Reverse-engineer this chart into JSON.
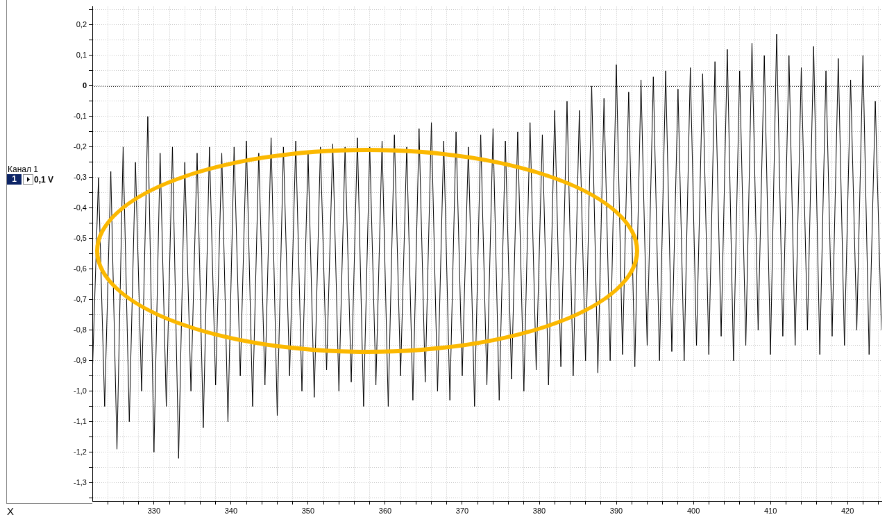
{
  "chart_data": {
    "type": "line",
    "annotations": [
      "Канал 1",
      "1",
      "0,1 V",
      "X"
    ],
    "xlim": [
      322,
      424.4
    ],
    "ylim": [
      -1.36,
      0.26
    ],
    "xticks": [
      {
        "value": 324,
        "label": null
      },
      {
        "value": 326,
        "label": null
      },
      {
        "value": 328,
        "label": null
      },
      330,
      {
        "value": 332,
        "label": null
      },
      {
        "value": 334,
        "label": null
      },
      {
        "value": 336,
        "label": null
      },
      {
        "value": 338,
        "label": null
      },
      340,
      {
        "value": 342,
        "label": null
      },
      {
        "value": 344,
        "label": null
      },
      {
        "value": 346,
        "label": null
      },
      {
        "value": 348,
        "label": null
      },
      350,
      {
        "value": 352,
        "label": null
      },
      {
        "value": 354,
        "label": null
      },
      {
        "value": 356,
        "label": null
      },
      {
        "value": 358,
        "label": null
      },
      360,
      {
        "value": 362,
        "label": null
      },
      {
        "value": 364,
        "label": null
      },
      {
        "value": 366,
        "label": null
      },
      {
        "value": 368,
        "label": null
      },
      370,
      {
        "value": 372,
        "label": null
      },
      {
        "value": 374,
        "label": null
      },
      {
        "value": 376,
        "label": null
      },
      {
        "value": 378,
        "label": null
      },
      380,
      {
        "value": 382,
        "label": null
      },
      {
        "value": 384,
        "label": null
      },
      {
        "value": 386,
        "label": null
      },
      {
        "value": 388,
        "label": null
      },
      390,
      {
        "value": 392,
        "label": null
      },
      {
        "value": 394,
        "label": null
      },
      {
        "value": 396,
        "label": null
      },
      {
        "value": 398,
        "label": null
      },
      400,
      {
        "value": 402,
        "label": null
      },
      {
        "value": 404,
        "label": null
      },
      {
        "value": 406,
        "label": null
      },
      {
        "value": 408,
        "label": null
      },
      410,
      {
        "value": 412,
        "label": null
      },
      {
        "value": 414,
        "label": null
      },
      {
        "value": 416,
        "label": null
      },
      {
        "value": 418,
        "label": null
      },
      420,
      {
        "value": 422,
        "label": null
      },
      {
        "value": 424,
        "label": null
      }
    ],
    "yticks": [
      {
        "value": 0.25,
        "label": null
      },
      {
        "value": 0.2,
        "label": "0,2"
      },
      {
        "value": 0.15,
        "label": null
      },
      {
        "value": 0.1,
        "label": "0,1"
      },
      {
        "value": 0.05,
        "label": null
      },
      0,
      {
        "value": -0.05,
        "label": null
      },
      {
        "value": -0.1,
        "label": "-0,1"
      },
      {
        "value": -0.15,
        "label": null
      },
      {
        "value": -0.2,
        "label": "-0,2"
      },
      {
        "value": -0.25,
        "label": null
      },
      {
        "value": -0.3,
        "label": "-0,3"
      },
      {
        "value": -0.35,
        "label": null
      },
      {
        "value": -0.4,
        "label": "-0,4"
      },
      {
        "value": -0.45,
        "label": null
      },
      {
        "value": -0.5,
        "label": "-0,5"
      },
      {
        "value": -0.55,
        "label": null
      },
      {
        "value": -0.6,
        "label": "-0,6"
      },
      {
        "value": -0.65,
        "label": null
      },
      {
        "value": -0.7,
        "label": "-0,7"
      },
      {
        "value": -0.75,
        "label": null
      },
      {
        "value": -0.8,
        "label": "-0,8"
      },
      {
        "value": -0.85,
        "label": null
      },
      {
        "value": -0.9,
        "label": "-0,9"
      },
      {
        "value": -0.95,
        "label": null
      },
      {
        "value": -1.0,
        "label": "-1,0"
      },
      {
        "value": -1.05,
        "label": null
      },
      {
        "value": -1.1,
        "label": "-1,1"
      },
      {
        "value": -1.15,
        "label": null
      },
      {
        "value": -1.2,
        "label": "-1,2"
      },
      {
        "value": -1.25,
        "label": null
      },
      {
        "value": -1.3,
        "label": "-1,3"
      },
      {
        "value": -1.35,
        "label": null
      }
    ],
    "grid": true,
    "marker": "none",
    "line_style": "solid",
    "ref_lines": [
      {
        "axis": "y",
        "value": 0,
        "color": "#000000",
        "line_style": "dotted"
      }
    ],
    "x": [
      322,
      322.8,
      323.6,
      324.4,
      325.2,
      326,
      326.8,
      327.6,
      328.4,
      329.2,
      330,
      330.8,
      331.6,
      332.4,
      333.2,
      334,
      334.8,
      335.6,
      336.4,
      337.2,
      338,
      338.8,
      339.6,
      340.4,
      341.2,
      342,
      342.8,
      343.6,
      344.4,
      345.2,
      346,
      346.8,
      347.6,
      348.4,
      349.2,
      350,
      350.8,
      351.6,
      352.4,
      353.2,
      354,
      354.8,
      355.6,
      356.4,
      357.2,
      358,
      358.8,
      359.6,
      360.4,
      361.2,
      362,
      362.8,
      363.6,
      364.4,
      365.2,
      366,
      366.8,
      367.6,
      368.4,
      369.2,
      370,
      370.8,
      371.6,
      372.4,
      373.2,
      374,
      374.8,
      375.6,
      376.4,
      377.2,
      378,
      378.8,
      379.6,
      380.4,
      381.2,
      382,
      382.8,
      383.6,
      384.4,
      385.2,
      386,
      386.8,
      387.6,
      388.4,
      389.2,
      390,
      390.8,
      391.6,
      392.4,
      393.2,
      394,
      394.8,
      395.6,
      396.4,
      397.2,
      398,
      398.8,
      399.6,
      400.4,
      401.2,
      402,
      402.8,
      403.6,
      404.4,
      405.2,
      406,
      406.8,
      407.6,
      408.4,
      409.2,
      410,
      410.8,
      411.6,
      412.4,
      413.2,
      414,
      414.8,
      415.6,
      416.4,
      417.2,
      418,
      418.8,
      419.6,
      420.4,
      421.2,
      422,
      422.8,
      423.6,
      424.4
    ],
    "series": [
      {
        "color": "#000000",
        "values": [
          -0.95,
          -0.3,
          -1.05,
          -0.28,
          -1.19,
          -0.2,
          -1.1,
          -0.25,
          -1.0,
          -0.1,
          -1.2,
          -0.22,
          -1.05,
          -0.2,
          -1.22,
          -0.25,
          -1.0,
          -0.22,
          -1.12,
          -0.2,
          -0.98,
          -0.22,
          -1.1,
          -0.2,
          -0.95,
          -0.18,
          -1.05,
          -0.22,
          -0.98,
          -0.17,
          -1.08,
          -0.2,
          -0.95,
          -0.18,
          -1.0,
          -0.22,
          -1.02,
          -0.2,
          -0.93,
          -0.19,
          -1.0,
          -0.2,
          -0.97,
          -0.17,
          -1.05,
          -0.2,
          -0.98,
          -0.18,
          -1.05,
          -0.16,
          -0.95,
          -0.2,
          -1.03,
          -0.14,
          -0.97,
          -0.12,
          -1.0,
          -0.18,
          -1.03,
          -0.15,
          -0.95,
          -0.2,
          -1.05,
          -0.16,
          -0.98,
          -0.14,
          -1.03,
          -0.18,
          -0.96,
          -0.15,
          -1.0,
          -0.12,
          -0.93,
          -0.16,
          -0.98,
          -0.08,
          -0.92,
          -0.05,
          -0.95,
          -0.08,
          -0.9,
          0.0,
          -0.94,
          -0.04,
          -0.9,
          0.07,
          -0.88,
          -0.02,
          -0.92,
          0.02,
          -0.85,
          0.03,
          -0.9,
          0.05,
          -0.87,
          -0.01,
          -0.9,
          0.06,
          -0.85,
          0.04,
          -0.88,
          0.08,
          -0.82,
          0.12,
          -0.9,
          0.05,
          -0.85,
          0.14,
          -0.8,
          0.1,
          -0.88,
          0.17,
          -0.82,
          0.1,
          -0.85,
          0.06,
          -0.8,
          0.13,
          -0.88,
          0.05,
          -0.82,
          0.09,
          -0.85,
          0.02,
          -0.8,
          0.1,
          -0.88,
          -0.05,
          -0.8
        ]
      }
    ]
  }
}
